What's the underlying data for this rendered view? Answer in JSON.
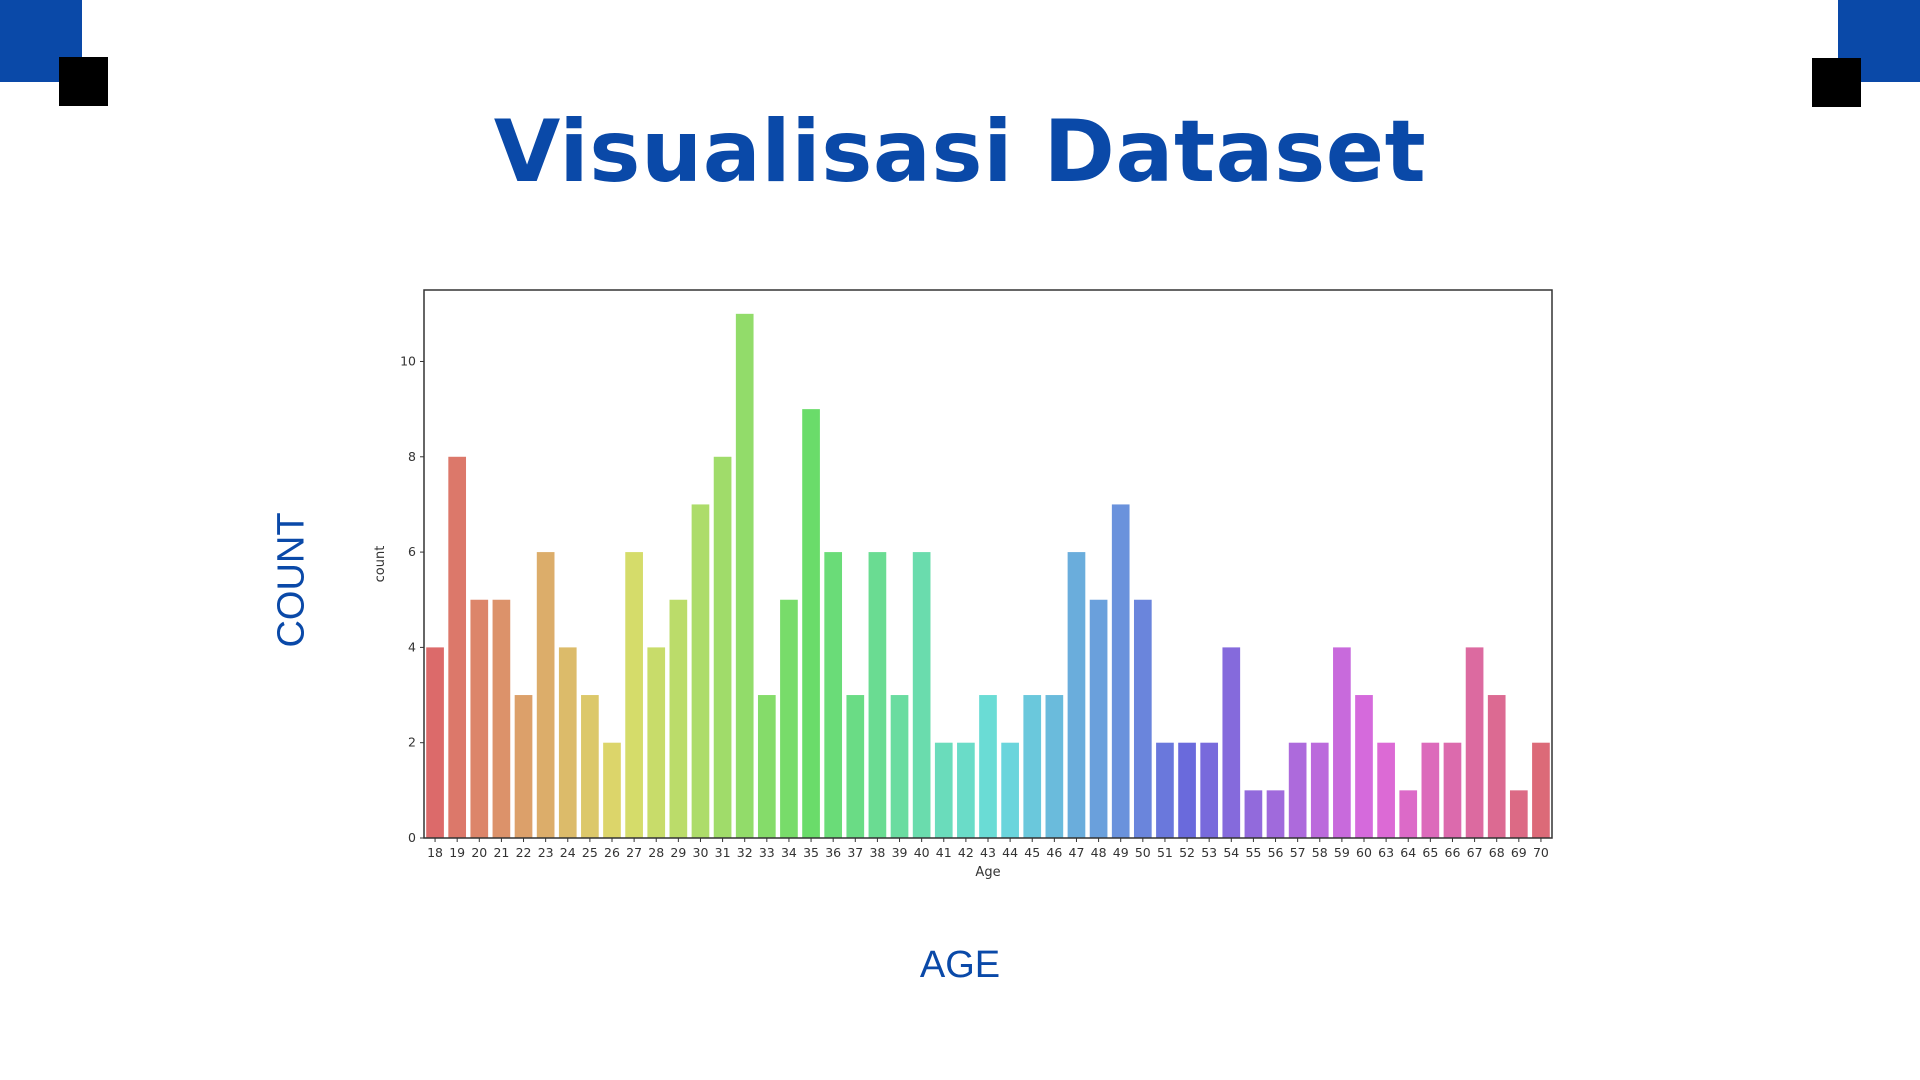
{
  "slide": {
    "title": "Visualisasi Dataset",
    "y_caption": "COUNT",
    "x_caption": "AGE"
  },
  "colors": {
    "accent": "#0a49a8",
    "corner_blue": "#0a49a8",
    "corner_black": "#000000"
  },
  "chart_data": {
    "type": "bar",
    "xlabel": "Age",
    "ylabel": "count",
    "ylim": [
      0,
      11.5
    ],
    "yticks": [
      0,
      2,
      4,
      6,
      8,
      10
    ],
    "grid": false,
    "categories": [
      "18",
      "19",
      "20",
      "21",
      "22",
      "23",
      "24",
      "25",
      "26",
      "27",
      "28",
      "29",
      "30",
      "31",
      "32",
      "33",
      "34",
      "35",
      "36",
      "37",
      "38",
      "39",
      "40",
      "41",
      "42",
      "43",
      "44",
      "45",
      "46",
      "47",
      "48",
      "49",
      "50",
      "51",
      "52",
      "53",
      "54",
      "55",
      "56",
      "57",
      "58",
      "59",
      "60",
      "63",
      "64",
      "65",
      "66",
      "67",
      "68",
      "69",
      "70"
    ],
    "values": [
      4,
      8,
      5,
      5,
      3,
      6,
      4,
      3,
      2,
      6,
      4,
      5,
      7,
      8,
      11,
      3,
      5,
      9,
      6,
      3,
      6,
      3,
      6,
      2,
      2,
      3,
      2,
      3,
      3,
      6,
      5,
      7,
      5,
      2,
      2,
      2,
      4,
      1,
      1,
      2,
      2,
      4,
      3,
      2,
      1,
      2,
      2,
      4,
      3,
      1,
      2
    ],
    "palette": "husl"
  }
}
